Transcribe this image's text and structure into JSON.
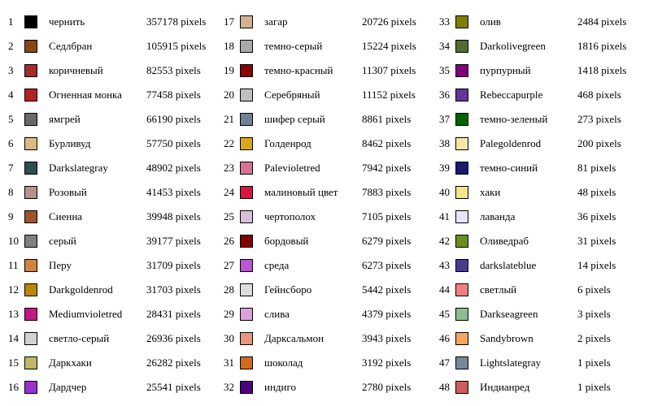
{
  "unit": "pixels",
  "items": [
    {
      "index": "1",
      "name": "чернить",
      "color": "#000000",
      "count": "357178"
    },
    {
      "index": "2",
      "name": "Седлбран",
      "color": "#8B4513",
      "count": "105915"
    },
    {
      "index": "3",
      "name": "коричневый",
      "color": "#A52A2A",
      "count": "82553"
    },
    {
      "index": "4",
      "name": "Огненная монка",
      "color": "#B22222",
      "count": "77458"
    },
    {
      "index": "5",
      "name": "ямгрей",
      "color": "#696969",
      "count": "66190"
    },
    {
      "index": "6",
      "name": "Бурливуд",
      "color": "#DEB887",
      "count": "57750"
    },
    {
      "index": "7",
      "name": "Darkslategray",
      "color": "#2F4F4F",
      "count": "48902"
    },
    {
      "index": "8",
      "name": "Розовый",
      "color": "#BC8F8F",
      "count": "41453"
    },
    {
      "index": "9",
      "name": "Сиенна",
      "color": "#A0522D",
      "count": "39948"
    },
    {
      "index": "10",
      "name": "серый",
      "color": "#808080",
      "count": "39177"
    },
    {
      "index": "11",
      "name": "Перу",
      "color": "#CD853F",
      "count": "31709"
    },
    {
      "index": "12",
      "name": "Darkgoldenrod",
      "color": "#B8860B",
      "count": "31703"
    },
    {
      "index": "13",
      "name": "Mediumvioletred",
      "color": "#C71585",
      "count": "28431"
    },
    {
      "index": "14",
      "name": "светло-серый",
      "color": "#D3D3D3",
      "count": "26936"
    },
    {
      "index": "15",
      "name": "Даркхаки",
      "color": "#BDB76B",
      "count": "26282"
    },
    {
      "index": "16",
      "name": "Дардчер",
      "color": "#9932CC",
      "count": "25541"
    },
    {
      "index": "17",
      "name": "загар",
      "color": "#D2B48C",
      "count": "20726"
    },
    {
      "index": "18",
      "name": "темно-серый",
      "color": "#A9A9A9",
      "count": "15224"
    },
    {
      "index": "19",
      "name": "темно-красный",
      "color": "#8B0000",
      "count": "11307"
    },
    {
      "index": "20",
      "name": "Серебряный",
      "color": "#C0C0C0",
      "count": "11152"
    },
    {
      "index": "21",
      "name": "шифер серый",
      "color": "#708090",
      "count": "8861"
    },
    {
      "index": "22",
      "name": "Голденрод",
      "color": "#DAA520",
      "count": "8462"
    },
    {
      "index": "23",
      "name": "Palevioletred",
      "color": "#DB7093",
      "count": "7942"
    },
    {
      "index": "24",
      "name": "малиновый цвет",
      "color": "#DC143C",
      "count": "7883"
    },
    {
      "index": "25",
      "name": "чертополох",
      "color": "#D8BFD8",
      "count": "7105"
    },
    {
      "index": "26",
      "name": "бордовый",
      "color": "#800000",
      "count": "6279"
    },
    {
      "index": "27",
      "name": "среда",
      "color": "#BA55D3",
      "count": "6273"
    },
    {
      "index": "28",
      "name": "Гейнсборо",
      "color": "#DCDCDC",
      "count": "5442"
    },
    {
      "index": "29",
      "name": "слива",
      "color": "#DDA0DD",
      "count": "4379"
    },
    {
      "index": "30",
      "name": "Дарксальмон",
      "color": "#E9967A",
      "count": "3943"
    },
    {
      "index": "31",
      "name": "шоколад",
      "color": "#D2691E",
      "count": "3192"
    },
    {
      "index": "32",
      "name": "индиго",
      "color": "#4B0082",
      "count": "2780"
    },
    {
      "index": "33",
      "name": "олив",
      "color": "#808000",
      "count": "2484"
    },
    {
      "index": "34",
      "name": "Darkolivegreen",
      "color": "#556B2F",
      "count": "1816"
    },
    {
      "index": "35",
      "name": "пурпурный",
      "color": "#800080",
      "count": "1418"
    },
    {
      "index": "36",
      "name": "Rebeccapurple",
      "color": "#663399",
      "count": "468"
    },
    {
      "index": "37",
      "name": "темно-зеленый",
      "color": "#006400",
      "count": "273"
    },
    {
      "index": "38",
      "name": "Palegoldenrod",
      "color": "#EEE8AA",
      "count": "200"
    },
    {
      "index": "39",
      "name": "темно-синий",
      "color": "#191970",
      "count": "81"
    },
    {
      "index": "40",
      "name": "хаки",
      "color": "#F0E68C",
      "count": "48"
    },
    {
      "index": "41",
      "name": "лаванда",
      "color": "#E6E6FA",
      "count": "36"
    },
    {
      "index": "42",
      "name": "Оливедраб",
      "color": "#6B8E23",
      "count": "31"
    },
    {
      "index": "43",
      "name": "darkslateblue",
      "color": "#483D8B",
      "count": "14"
    },
    {
      "index": "44",
      "name": "светлый",
      "color": "#F08080",
      "count": "6"
    },
    {
      "index": "45",
      "name": "Darkseagreen",
      "color": "#8FBC8F",
      "count": "3"
    },
    {
      "index": "46",
      "name": "Sandybrown",
      "color": "#F4A460",
      "count": "2"
    },
    {
      "index": "47",
      "name": "Lightslategray",
      "color": "#778899",
      "count": "1"
    },
    {
      "index": "48",
      "name": "Индианред",
      "color": "#CD5C5C",
      "count": "1"
    }
  ]
}
